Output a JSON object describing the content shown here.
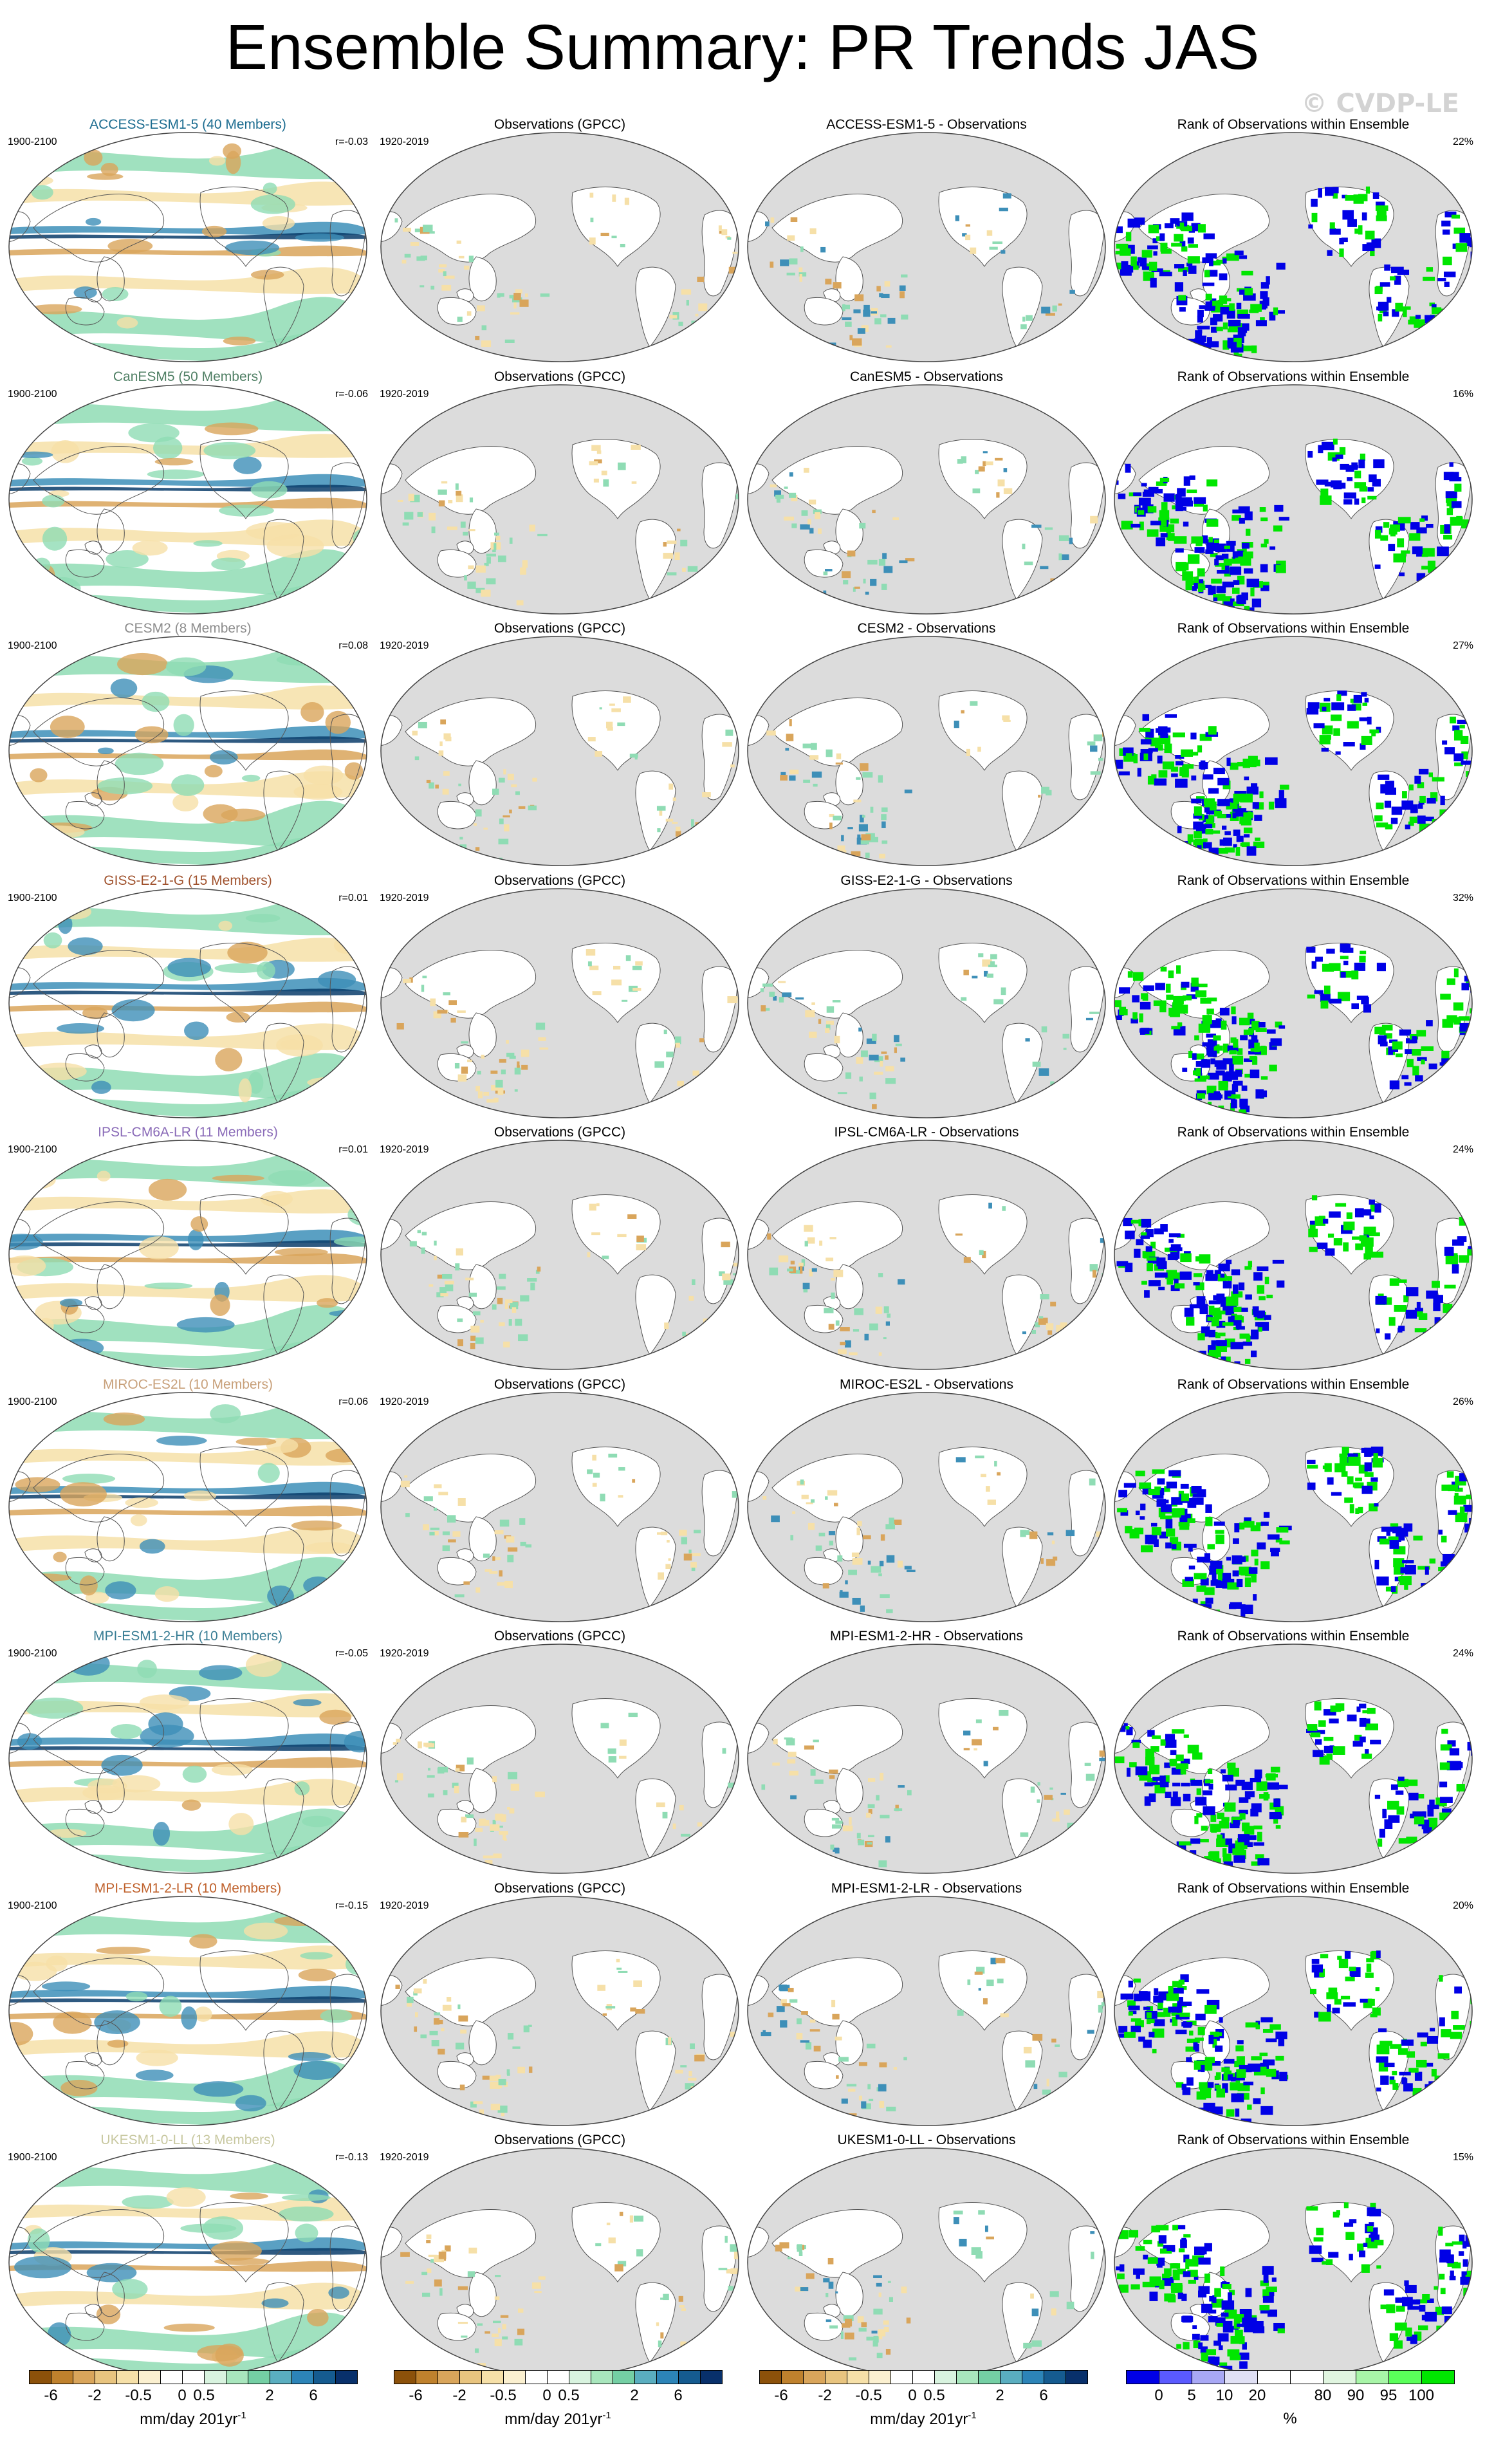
{
  "title": "Ensemble Summary: PR Trends JAS",
  "watermark": "© CVDP-LE",
  "column_titles": {
    "observations": "Observations (GPCC)",
    "rank": "Rank of Observations within Ensemble"
  },
  "periods": {
    "model": "1900-2100",
    "obs": "1920-2019"
  },
  "rows": [
    {
      "model_label": "ACCESS-ESM1-5 (40 Members)",
      "label_color": "#1a6b8f",
      "r": "r=-0.03",
      "diff_title": "ACCESS-ESM1-5 - Observations",
      "rank_pct": "22%"
    },
    {
      "model_label": "CanESM5 (50 Members)",
      "label_color": "#4f7f64",
      "r": "r=-0.06",
      "diff_title": "CanESM5 - Observations",
      "rank_pct": "16%"
    },
    {
      "model_label": "CESM2 (8 Members)",
      "label_color": "#8c8c8c",
      "r": "r=0.08",
      "diff_title": "CESM2 - Observations",
      "rank_pct": "27%"
    },
    {
      "model_label": "GISS-E2-1-G (15 Members)",
      "label_color": "#a0522d",
      "r": "r=0.01",
      "diff_title": "GISS-E2-1-G - Observations",
      "rank_pct": "32%"
    },
    {
      "model_label": "IPSL-CM6A-LR (11 Members)",
      "label_color": "#8a6bb8",
      "r": "r=0.01",
      "diff_title": "IPSL-CM6A-LR - Observations",
      "rank_pct": "24%"
    },
    {
      "model_label": "MIROC-ES2L (10 Members)",
      "label_color": "#c8a07a",
      "r": "r=0.06",
      "diff_title": "MIROC-ES2L - Observations",
      "rank_pct": "26%"
    },
    {
      "model_label": "MPI-ESM1-2-HR (10 Members)",
      "label_color": "#3a7e95",
      "r": "r=-0.05",
      "diff_title": "MPI-ESM1-2-HR - Observations",
      "rank_pct": "24%"
    },
    {
      "model_label": "MPI-ESM1-2-LR (10 Members)",
      "label_color": "#c0622d",
      "r": "r=-0.15",
      "diff_title": "MPI-ESM1-2-LR - Observations",
      "rank_pct": "20%"
    },
    {
      "model_label": "UKESM1-0-LL (13 Members)",
      "label_color": "#c8c8a0",
      "r": "r=-0.13",
      "diff_title": "UKESM1-0-LL - Observations",
      "rank_pct": "15%"
    }
  ],
  "trend_colorbar": {
    "colors": [
      "#8c510a",
      "#bf812d",
      "#d9a55b",
      "#e8c47f",
      "#f6e0a8",
      "#fbf0d0",
      "#ffffff",
      "#ffffff",
      "#d8f3df",
      "#a8e6bd",
      "#74cfa4",
      "#5aaec0",
      "#2c84b8",
      "#155b90",
      "#08306b"
    ],
    "ticks": [
      "-6",
      "-2",
      "-0.5",
      "0",
      "0.5",
      "2",
      "6"
    ],
    "unit": "mm/day 201yr",
    "unit_sup": "-1"
  },
  "rank_colorbar": {
    "colors": [
      "#0000e6",
      "#5a5aff",
      "#a8a8f5",
      "#e0e0f5",
      "#ffffff",
      "#ffffff",
      "#e0f5e0",
      "#a8f5a8",
      "#5aff5a",
      "#00e600"
    ],
    "ticks": [
      "0",
      "5",
      "10",
      "20",
      "80",
      "90",
      "95",
      "100"
    ],
    "unit": "%"
  },
  "map_colors": {
    "ocean_obs": "#dcdcdc",
    "wet_dark": "#0b3d6b",
    "wet_mid": "#3d8fb8",
    "wet_light": "#8fdcb4",
    "dry_light": "#f6e0a8",
    "dry_mid": "#d9a55b",
    "rank_low": "#0000e6",
    "rank_high": "#00e600"
  }
}
